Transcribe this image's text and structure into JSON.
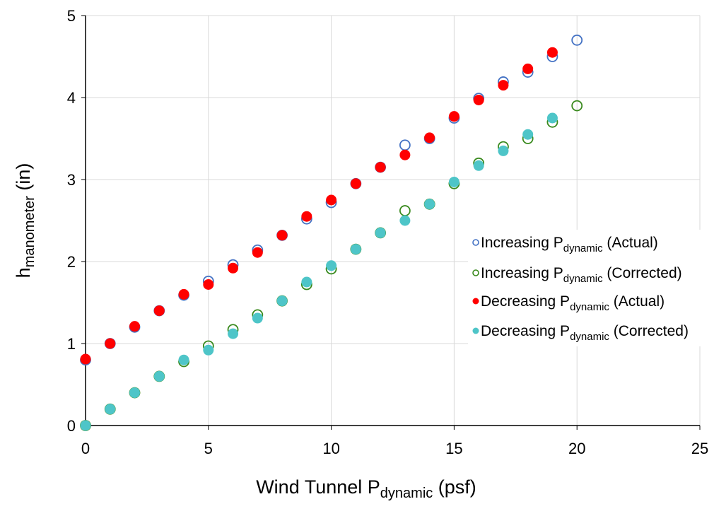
{
  "chart_data": {
    "type": "scatter",
    "title": "",
    "xlabel": {
      "main": "Wind Tunnel P",
      "sub": "dynamic",
      "suffix": " (psf)"
    },
    "ylabel": {
      "main": "h",
      "sub": "manometer",
      "suffix": " (in)"
    },
    "xlim": [
      0,
      25
    ],
    "ylim": [
      0,
      5
    ],
    "xticks": [
      0,
      5,
      10,
      15,
      20,
      25
    ],
    "yticks": [
      0,
      1,
      2,
      3,
      4,
      5
    ],
    "grid": true,
    "legend_placement": "right-center",
    "series": [
      {
        "name": {
          "main": "Increasing P",
          "sub": "dynamic",
          "suffix": " (Actual)"
        },
        "color": "#4472C4",
        "marker": "open-circle",
        "x": [
          0,
          1,
          2,
          3,
          4,
          5,
          6,
          7,
          8,
          9,
          10,
          11,
          12,
          13,
          14,
          15,
          16,
          17,
          18,
          19,
          20
        ],
        "y": [
          0.8,
          1.0,
          1.2,
          1.4,
          1.59,
          1.76,
          1.96,
          2.14,
          2.32,
          2.52,
          2.72,
          2.95,
          3.15,
          3.42,
          3.5,
          3.75,
          3.99,
          4.19,
          4.31,
          4.5,
          4.7
        ]
      },
      {
        "name": {
          "main": "Increasing P",
          "sub": "dynamic",
          "suffix": " (Corrected)"
        },
        "color": "#3A8A1E",
        "marker": "open-circle",
        "x": [
          0,
          1,
          2,
          3,
          4,
          5,
          6,
          7,
          8,
          9,
          10,
          11,
          12,
          13,
          14,
          15,
          16,
          17,
          18,
          19,
          20
        ],
        "y": [
          0,
          0.2,
          0.4,
          0.6,
          0.78,
          0.97,
          1.17,
          1.35,
          1.52,
          1.72,
          1.91,
          2.15,
          2.35,
          2.62,
          2.7,
          2.95,
          3.2,
          3.4,
          3.5,
          3.7,
          3.9
        ]
      },
      {
        "name": {
          "main": "Decreasing P",
          "sub": "dynamic",
          "suffix": " (Actual)"
        },
        "color": "#FF0000",
        "marker": "filled-circle",
        "x": [
          0,
          1,
          2,
          3,
          4,
          5,
          6,
          7,
          8,
          9,
          10,
          11,
          12,
          13,
          14,
          15,
          16,
          17,
          18,
          19
        ],
        "y": [
          0.81,
          1.0,
          1.21,
          1.4,
          1.6,
          1.72,
          1.92,
          2.11,
          2.32,
          2.55,
          2.75,
          2.95,
          3.15,
          3.3,
          3.51,
          3.77,
          3.97,
          4.15,
          4.35,
          4.55
        ]
      },
      {
        "name": {
          "main": "Decreasing P",
          "sub": "dynamic",
          "suffix": " (Corrected)"
        },
        "color": "#4EC5C8",
        "marker": "filled-circle",
        "x": [
          0,
          1,
          2,
          3,
          4,
          5,
          6,
          7,
          8,
          9,
          10,
          11,
          12,
          13,
          14,
          15,
          16,
          17,
          18,
          19
        ],
        "y": [
          0,
          0.2,
          0.4,
          0.6,
          0.8,
          0.92,
          1.12,
          1.31,
          1.52,
          1.75,
          1.95,
          2.15,
          2.35,
          2.5,
          2.7,
          2.97,
          3.17,
          3.35,
          3.55,
          3.75
        ]
      }
    ]
  }
}
